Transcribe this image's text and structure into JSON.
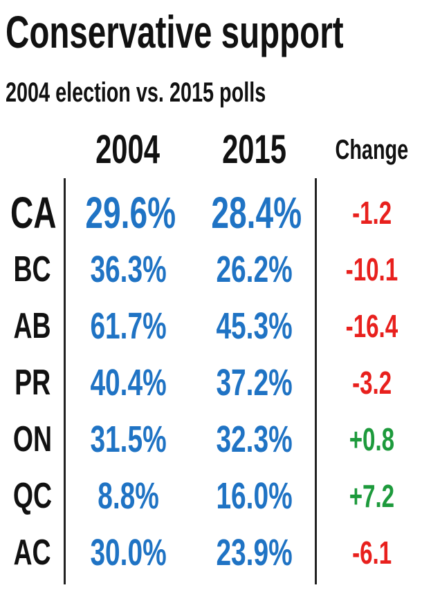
{
  "chart_data": {
    "type": "table",
    "title": "Conservative support",
    "subtitle": "2004 election vs. 2015 polls",
    "columns": [
      "2004",
      "2015",
      "Change"
    ],
    "colors": {
      "value": "#1f73c4",
      "negative": "#e8201d",
      "positive": "#1d9a3c"
    },
    "rows": [
      {
        "region": "CA",
        "v2004": "29.6%",
        "v2015": "28.4%",
        "change": "-1.2",
        "change_value": -1.2
      },
      {
        "region": "BC",
        "v2004": "36.3%",
        "v2015": "26.2%",
        "change": "-10.1",
        "change_value": -10.1
      },
      {
        "region": "AB",
        "v2004": "61.7%",
        "v2015": "45.3%",
        "change": "-16.4",
        "change_value": -16.4
      },
      {
        "region": "PR",
        "v2004": "40.4%",
        "v2015": "37.2%",
        "change": "-3.2",
        "change_value": -3.2
      },
      {
        "region": "ON",
        "v2004": "31.5%",
        "v2015": "32.3%",
        "change": "+0.8",
        "change_value": 0.8
      },
      {
        "region": "QC",
        "v2004": "8.8%",
        "v2015": "16.0%",
        "change": "+7.2",
        "change_value": 7.2
      },
      {
        "region": "AC",
        "v2004": "30.0%",
        "v2015": "23.9%",
        "change": "-6.1",
        "change_value": -6.1
      }
    ]
  }
}
